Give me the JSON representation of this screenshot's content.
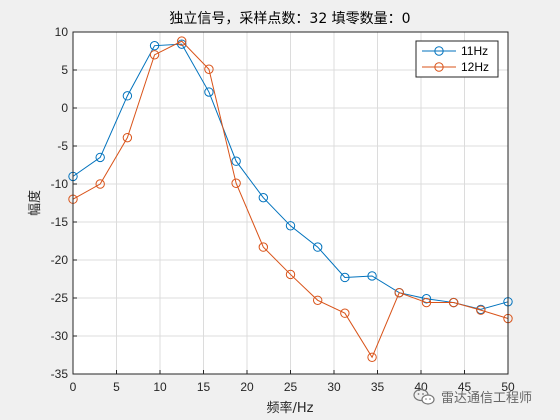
{
  "chart_data": {
    "type": "line",
    "title": "独立信号，采样点数：32 填零数量：0",
    "xlabel": "频率/Hz",
    "ylabel": "幅度",
    "xlim": [
      0,
      50
    ],
    "ylim": [
      -35,
      10
    ],
    "x_ticks": [
      0,
      5,
      10,
      15,
      20,
      25,
      30,
      35,
      40,
      45,
      50
    ],
    "y_ticks": [
      10,
      5,
      0,
      -5,
      -10,
      -15,
      -20,
      -25,
      -30,
      -35
    ],
    "grid": true,
    "legend_position": "top-right",
    "series": [
      {
        "name": "11Hz",
        "color": "#0072BD",
        "marker": "circle",
        "x": [
          0,
          3.125,
          6.25,
          9.375,
          12.5,
          15.625,
          18.75,
          21.875,
          25,
          28.125,
          31.25,
          34.375,
          37.5,
          40.625,
          43.75,
          46.875,
          50
        ],
        "y": [
          -9.0,
          -6.5,
          1.6,
          8.2,
          8.4,
          2.1,
          -7.0,
          -11.8,
          -15.5,
          -18.3,
          -22.3,
          -22.1,
          -24.3,
          -25.1,
          -25.6,
          -26.5,
          -25.5
        ]
      },
      {
        "name": "12Hz",
        "color": "#D95319",
        "marker": "circle",
        "x": [
          0,
          3.125,
          6.25,
          9.375,
          12.5,
          15.625,
          18.75,
          21.875,
          25,
          28.125,
          31.25,
          34.375,
          37.5,
          40.625,
          43.75,
          46.875,
          50
        ],
        "y": [
          -12.0,
          -10.0,
          -3.9,
          7.0,
          8.8,
          5.1,
          -9.9,
          -18.3,
          -21.9,
          -25.3,
          -27.0,
          -32.8,
          -24.3,
          -25.6,
          -25.6,
          -26.6,
          -27.7
        ]
      }
    ]
  },
  "watermark": {
    "icon": "wechat-icon",
    "text": "雷达通信工程师"
  }
}
